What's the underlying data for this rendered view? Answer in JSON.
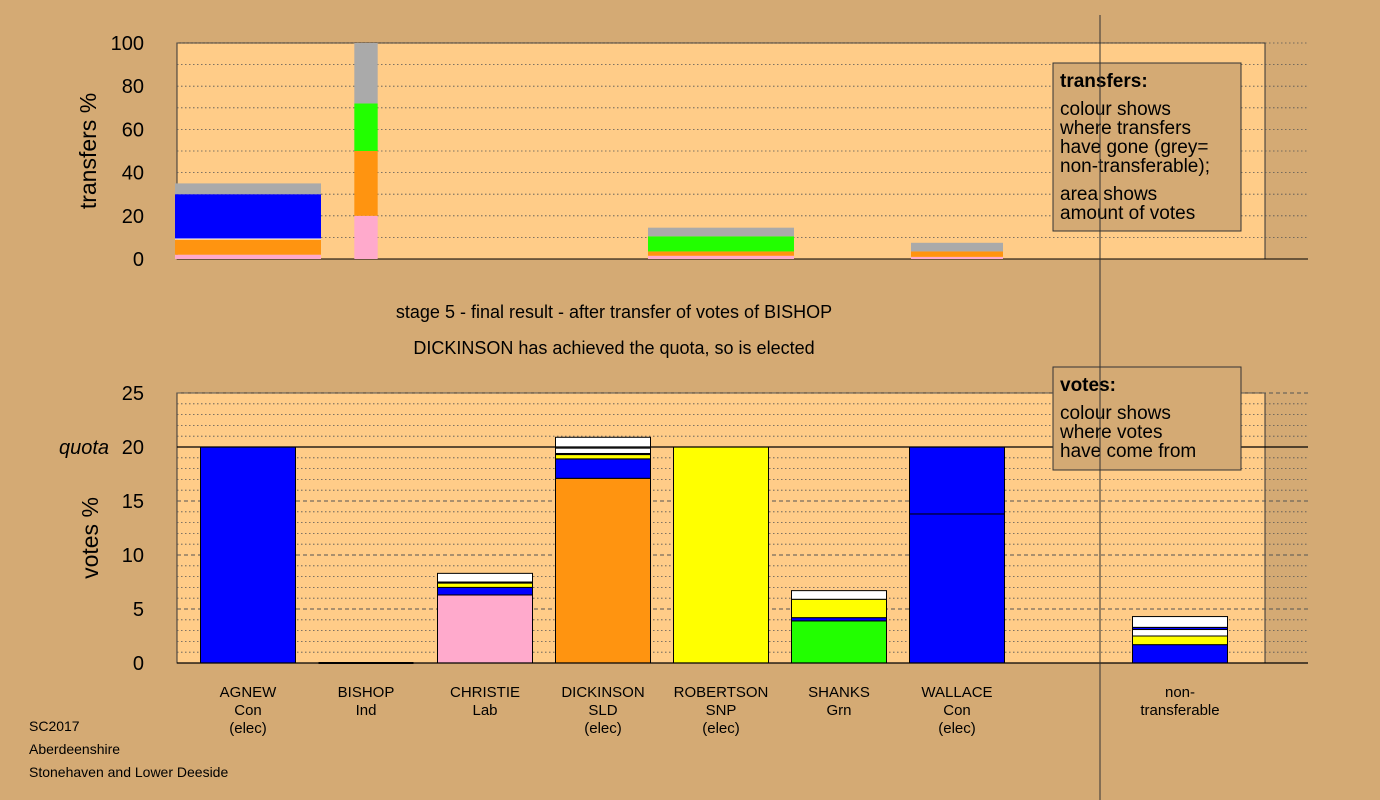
{
  "heading": {
    "stage_text": "stage 5 - final result - after transfer of votes of BISHOP",
    "result_text": "DICKINSON has achieved the quota, so is elected"
  },
  "footer": {
    "election": "SC2017",
    "council": "Aberdeenshire",
    "ward": "Stonehaven and Lower Deeside"
  },
  "colors": {
    "background": "#d4aa74",
    "plot_fill": "#ffcc88",
    "Con": "#0000ff",
    "SLD": "#ff9410",
    "SNP": "#ffff00",
    "Grn": "#22ff00",
    "Lab": "#ffaacc",
    "Ind": "#ffffff",
    "nontransferable": "#aaaaaa",
    "white": "#ffffff",
    "navy": "#000066"
  },
  "legends": {
    "transfers": {
      "title": "transfers:",
      "lines1": [
        "colour shows",
        "where transfers",
        "have gone (grey=",
        "non-transferable);"
      ],
      "lines2": [
        "area shows",
        "amount of votes"
      ]
    },
    "votes": {
      "title": "votes:",
      "lines": [
        "colour shows",
        "where votes",
        "have come from"
      ]
    }
  },
  "chart_data": [
    {
      "type": "bar",
      "ylabel": "transfers %",
      "ylim": [
        0,
        100
      ],
      "yticks": [
        0,
        20,
        40,
        60,
        80,
        100
      ],
      "grid": "dotted",
      "categories": [
        "AGNEW",
        "BISHOP",
        "CHRISTIE",
        "DICKINSON",
        "ROBERTSON",
        "SHANKS",
        "WALLACE"
      ],
      "bars": [
        {
          "candidate": "AGNEW",
          "width_fraction": 1.0,
          "segments": [
            {
              "color": "Lab",
              "value": 2
            },
            {
              "color": "SLD",
              "value": 7
            },
            {
              "color": "white",
              "value": 0.5
            },
            {
              "color": "Con",
              "value": 20.5
            },
            {
              "color": "nontransferable",
              "value": 5
            }
          ]
        },
        {
          "candidate": "BISHOP",
          "width_fraction": 0.16,
          "segments": [
            {
              "color": "Lab",
              "value": 20
            },
            {
              "color": "SLD",
              "value": 30
            },
            {
              "color": "Grn",
              "value": 22
            },
            {
              "color": "nontransferable",
              "value": 28
            }
          ]
        },
        {
          "candidate": "ROBERTSON",
          "width_fraction": 1.0,
          "segments": [
            {
              "color": "Lab",
              "value": 1.5
            },
            {
              "color": "SLD",
              "value": 2
            },
            {
              "color": "Grn",
              "value": 7
            },
            {
              "color": "nontransferable",
              "value": 4
            }
          ]
        },
        {
          "candidate": "WALLACE",
          "width_fraction": 0.63,
          "segments": [
            {
              "color": "Lab",
              "value": 1
            },
            {
              "color": "SLD",
              "value": 2.5
            },
            {
              "color": "nontransferable",
              "value": 4
            }
          ]
        }
      ]
    },
    {
      "type": "bar",
      "ylabel": "votes %",
      "ylim": [
        0,
        25
      ],
      "yticks": [
        0,
        5,
        10,
        15,
        20,
        25
      ],
      "quota_label": "quota",
      "quota": 20,
      "grid": "dashed",
      "categories": [
        {
          "name": "AGNEW",
          "party": "Con",
          "status": "(elec)"
        },
        {
          "name": "BISHOP",
          "party": "Ind",
          "status": ""
        },
        {
          "name": "CHRISTIE",
          "party": "Lab",
          "status": ""
        },
        {
          "name": "DICKINSON",
          "party": "SLD",
          "status": "(elec)"
        },
        {
          "name": "ROBERTSON",
          "party": "SNP",
          "status": "(elec)"
        },
        {
          "name": "SHANKS",
          "party": "Grn",
          "status": ""
        },
        {
          "name": "WALLACE",
          "party": "Con",
          "status": "(elec)"
        }
      ],
      "extra_category": {
        "line1": "non-",
        "line2": "transferable"
      },
      "bars": [
        {
          "candidate": "AGNEW",
          "segments": [
            {
              "color": "Con",
              "value": 20
            }
          ]
        },
        {
          "candidate": "BISHOP",
          "segments": []
        },
        {
          "candidate": "CHRISTIE",
          "segments": [
            {
              "color": "Lab",
              "value": 6.3
            },
            {
              "color": "Con",
              "value": 0.7
            },
            {
              "color": "SNP",
              "value": 0.4
            },
            {
              "color": "navy",
              "value": 0.1
            },
            {
              "color": "white",
              "value": 0.8
            }
          ]
        },
        {
          "candidate": "DICKINSON",
          "segments": [
            {
              "color": "SLD",
              "value": 17.1
            },
            {
              "color": "Con",
              "value": 1.8
            },
            {
              "color": "SNP",
              "value": 0.4
            },
            {
              "color": "navy",
              "value": 0.1
            },
            {
              "color": "white",
              "value": 0.5
            },
            {
              "color": "white",
              "value": 1.0
            }
          ]
        },
        {
          "candidate": "ROBERTSON",
          "segments": [
            {
              "color": "SNP",
              "value": 20
            }
          ]
        },
        {
          "candidate": "SHANKS",
          "segments": [
            {
              "color": "Grn",
              "value": 3.9
            },
            {
              "color": "Con",
              "value": 0.3
            },
            {
              "color": "SNP",
              "value": 1.7
            },
            {
              "color": "white",
              "value": 0.8
            }
          ]
        },
        {
          "candidate": "WALLACE",
          "segments": [
            {
              "color": "Con",
              "value": 13.8
            },
            {
              "color": "Con",
              "value": 6.2
            }
          ]
        }
      ],
      "nontransferable_bar": {
        "segments": [
          {
            "color": "Con",
            "value": 1.7
          },
          {
            "color": "SNP",
            "value": 0.8
          },
          {
            "color": "white",
            "value": 0.6
          },
          {
            "color": "Con",
            "value": 0.2
          },
          {
            "color": "white",
            "value": 1.0
          }
        ]
      }
    }
  ]
}
